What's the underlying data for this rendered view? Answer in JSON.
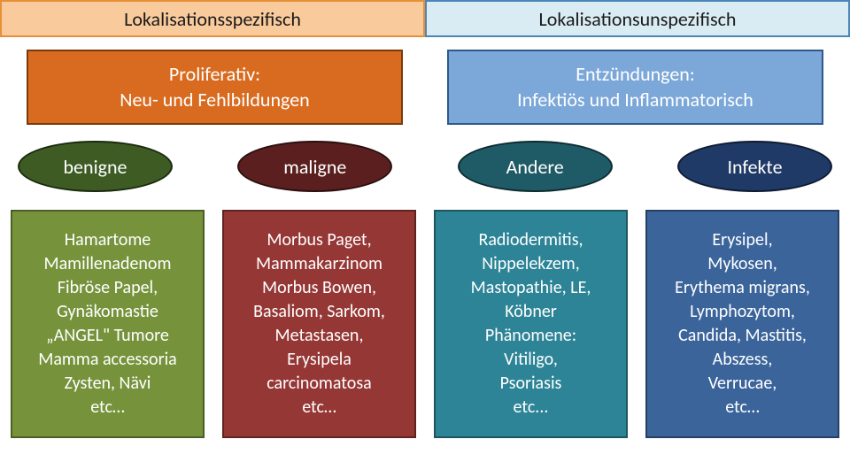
{
  "header": {
    "left": {
      "label": "Lokalisationsspezifisch",
      "bg": "#f9cb9c",
      "border": "#e69138",
      "color": "#1a1a1a"
    },
    "right": {
      "label": "Lokalisationsunspezifisch",
      "bg": "#d9ecf3",
      "border": "#4a86b8",
      "color": "#1a1a1a"
    }
  },
  "category": {
    "left": {
      "label": "Proliferativ:\nNeu- und Fehlbildungen",
      "bg": "#d86b1f",
      "border": "#7a3a0a",
      "color": "#ffffff"
    },
    "right": {
      "label": "Entzündungen:\nInfektiös und Inflammatorisch",
      "bg": "#7ba7d9",
      "border": "#2d5a8a",
      "color": "#ffffff"
    }
  },
  "ellipses": [
    {
      "label": "benigne",
      "bg": "#3e5b24",
      "border": "#1a2a0e"
    },
    {
      "label": "maligne",
      "bg": "#5b1f1f",
      "border": "#2a0e0e"
    },
    {
      "label": "Andere",
      "bg": "#1f5b66",
      "border": "#0e2a30"
    },
    {
      "label": "Infekte",
      "bg": "#1f3a66",
      "border": "#0e1a30"
    }
  ],
  "details": [
    {
      "text": "Hamartome\nMamillenadenom\nFibröse Papel,\nGynäkomastie\n„ANGEL\" Tumore\nMamma accessoria\nZysten, Nävi\netc…",
      "bg": "#76933c",
      "border": "#4a5f24"
    },
    {
      "text": "Morbus Paget,\nMammakarzinom\nMorbus Bowen,\nBasaliom, Sarkom,\nMetastasen,\nErysipela\ncarcinomatosa\netc…",
      "bg": "#953735",
      "border": "#5f2322"
    },
    {
      "text": "Radiodermitis,\nNippelekzem,\nMastopathie, LE,\nKöbner\nPhänomene:\nVitiligo,\nPsoriasis\netc...",
      "bg": "#2d8496",
      "border": "#1d5560"
    },
    {
      "text": "Erysipel,\nMykosen,\nErythema migrans,\nLymphozytom,\nCandida, Mastitis,\nAbszess,\nVerrucae,\netc…",
      "bg": "#3b649b",
      "border": "#254064"
    }
  ]
}
